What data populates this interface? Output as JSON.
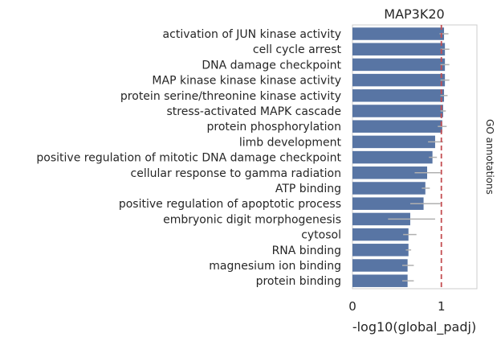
{
  "colors": {
    "bar": "#5875a4",
    "error_bar": "#b0b0b0",
    "threshold_line": "#c44e52",
    "frame": "#cccccc"
  },
  "chart_data": {
    "type": "bar",
    "orientation": "horizontal",
    "title": "MAP3K20",
    "xlabel": "-log10(global_padj)",
    "ylabel": "GO annotations",
    "xlim": [
      0,
      1.4
    ],
    "xticks": [
      "0",
      "1"
    ],
    "grid": false,
    "threshold": 1,
    "categories": [
      "activation of JUN kinase activity",
      "cell cycle arrest",
      "DNA damage checkpoint",
      "MAP kinase kinase kinase activity",
      "protein serine/threonine kinase activity",
      "stress-activated MAPK cascade",
      "protein phosphorylation",
      "limb development",
      "positive regulation of mitotic DNA damage checkpoint",
      "cellular response to gamma radiation",
      "ATP binding",
      "positive regulation of apoptotic process",
      "embryonic digit morphogenesis",
      "cytosol",
      "RNA binding",
      "magnesium ion binding",
      "protein binding"
    ],
    "values": [
      1.03,
      1.04,
      1.04,
      1.04,
      1.03,
      1.02,
      1.01,
      0.93,
      0.9,
      0.84,
      0.82,
      0.8,
      0.65,
      0.63,
      0.63,
      0.62,
      0.62
    ],
    "error_low": [
      0.98,
      0.99,
      0.99,
      0.99,
      0.99,
      0.99,
      0.96,
      0.85,
      0.86,
      0.7,
      0.78,
      0.65,
      0.4,
      0.57,
      0.6,
      0.56,
      0.56
    ],
    "error_high": [
      1.08,
      1.09,
      1.09,
      1.09,
      1.07,
      1.05,
      1.06,
      1.02,
      0.95,
      0.99,
      0.87,
      0.99,
      0.93,
      0.72,
      0.66,
      0.69,
      0.69
    ]
  }
}
